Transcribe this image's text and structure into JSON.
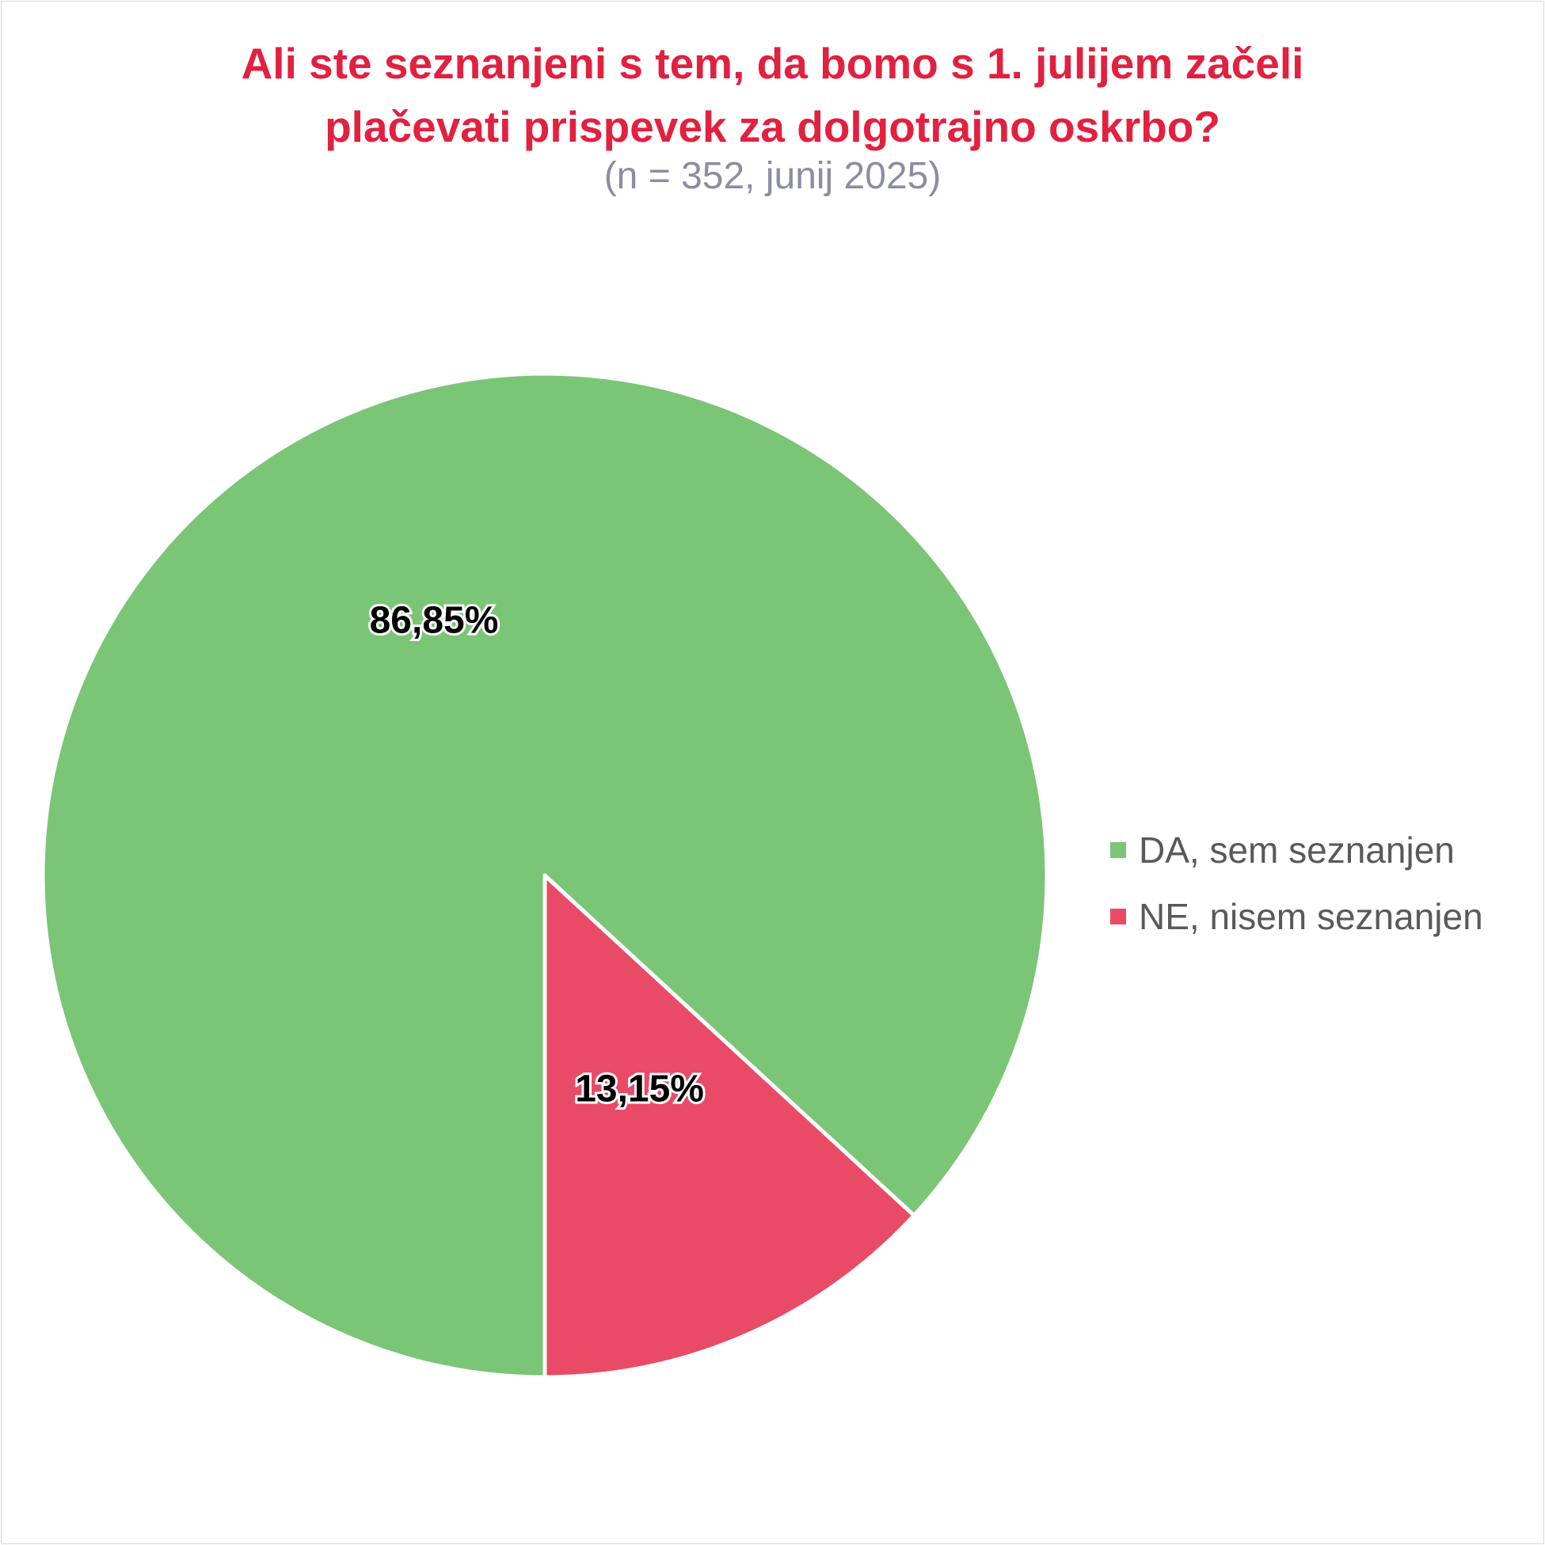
{
  "chart_data": {
    "type": "pie",
    "title": [
      "Ali ste seznanjeni s tem, da bomo s 1. julijem začeli",
      "plačevati prispevek za dolgotrajno oskrbo?"
    ],
    "subtitle": "(n = 352, junij 2025)",
    "slices": [
      {
        "label": "DA, sem seznanjen",
        "value": 86.85,
        "data_label": "86,85%",
        "color": "#7bc576"
      },
      {
        "label": "NE, nisem seznanjen",
        "value": 13.15,
        "data_label": "13,15%",
        "color": "#e94b67"
      }
    ],
    "legend_position": "right"
  }
}
